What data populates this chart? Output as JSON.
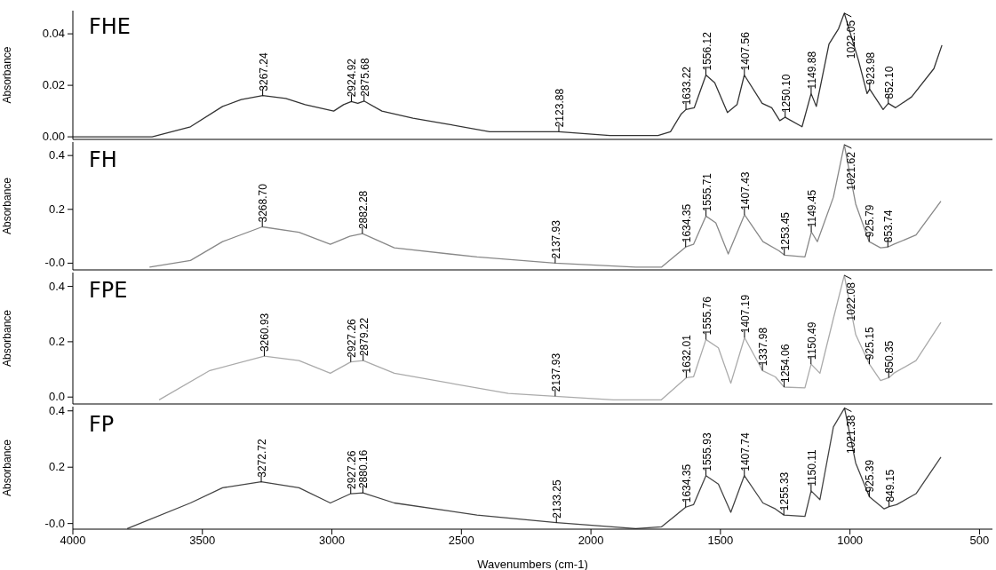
{
  "chart_data": [
    {
      "type": "line",
      "title": "FHE",
      "ylabel": "Absorbance",
      "xlim": [
        4000,
        450
      ],
      "xticks": [
        4000,
        3500,
        3000,
        2500,
        2000,
        1500,
        1000,
        500
      ],
      "ylim": [
        -0.001,
        0.049
      ],
      "yticks": [
        {
          "value": 0,
          "label": "0.00"
        },
        {
          "value": 0.02,
          "label": "0.02"
        },
        {
          "value": 0.04,
          "label": "0.04"
        }
      ],
      "tick_labels": "y",
      "x": [
        4000,
        3694,
        3546,
        3422,
        3350,
        3267,
        3178,
        3103,
        2993,
        2955,
        2925,
        2900,
        2876,
        2807,
        2687,
        2563,
        2391,
        2357,
        2124,
        1927,
        1741,
        1693,
        1652,
        1633,
        1601,
        1556,
        1522,
        1473,
        1436,
        1408,
        1339,
        1302,
        1271,
        1250,
        1185,
        1150,
        1130,
        1081,
        1044,
        1022,
        968,
        934,
        924,
        872,
        852,
        824,
        762,
        676,
        645
      ],
      "series": [
        {
          "color": "#333333",
          "values": [
            0,
            0,
            0.0039,
            0.0118,
            0.0145,
            0.016,
            0.0149,
            0.0125,
            0.01,
            0.0125,
            0.0137,
            0.013,
            0.0139,
            0.01,
            0.0072,
            0.0051,
            0.002,
            0.002,
            0.002,
            0.0005,
            0.0005,
            0.002,
            0.0088,
            0.0106,
            0.0113,
            0.024,
            0.021,
            0.0094,
            0.0125,
            0.024,
            0.013,
            0.0113,
            0.0063,
            0.0076,
            0.0039,
            0.0168,
            0.0118,
            0.036,
            0.042,
            0.048,
            0.03,
            0.0168,
            0.0185,
            0.0106,
            0.013,
            0.0113,
            0.0155,
            0.0265,
            0.0356
          ]
        }
      ],
      "annotations": [
        {
          "text": "3267.24",
          "x": 3267.24,
          "y": 0.016
        },
        {
          "text": "2924.92",
          "x": 2924.92,
          "y": 0.0137
        },
        {
          "text": "2875.68",
          "x": 2875.68,
          "y": 0.0139
        },
        {
          "text": "2123.88",
          "x": 2123.88,
          "y": 0.002
        },
        {
          "text": "1633.22",
          "x": 1633.22,
          "y": 0.0106
        },
        {
          "text": "1556.12",
          "x": 1556.12,
          "y": 0.024
        },
        {
          "text": "1407.56",
          "x": 1407.56,
          "y": 0.024
        },
        {
          "text": "1250.10",
          "x": 1250.1,
          "y": 0.0076
        },
        {
          "text": "1149.88",
          "x": 1149.88,
          "y": 0.0168
        },
        {
          "text": "1022.05",
          "x": 1022.05,
          "y": 0.048
        },
        {
          "text": "923.98",
          "x": 923.98,
          "y": 0.0185
        },
        {
          "text": "852.10",
          "x": 852.1,
          "y": 0.013
        }
      ]
    },
    {
      "type": "line",
      "title": "FH",
      "ylabel": "Absorbance",
      "xlim": [
        4000,
        450
      ],
      "xticks": [
        4000,
        3500,
        3000,
        2500,
        2000,
        1500,
        1000,
        500
      ],
      "ylim": [
        -0.025,
        0.45
      ],
      "yticks": [
        {
          "value": 0,
          "label": "-0.0"
        },
        {
          "value": 0.2,
          "label": "0.2"
        },
        {
          "value": 0.4,
          "label": "0.4"
        }
      ],
      "tick_labels": "y",
      "x": [
        3704,
        3546,
        3422,
        3269,
        3127,
        3006,
        2931,
        2882,
        2759,
        2440,
        2138,
        1827,
        1728,
        1634,
        1604,
        1556,
        1518,
        1470,
        1407,
        1336,
        1274,
        1253,
        1174,
        1149,
        1126,
        1064,
        1022,
        978,
        926,
        882,
        854,
        831,
        745,
        649
      ],
      "series": [
        {
          "color": "#888888",
          "values": [
            -0.015,
            0.01,
            0.08,
            0.135,
            0.115,
            0.07,
            0.1,
            0.11,
            0.057,
            0.023,
            0,
            -0.015,
            -0.015,
            0.06,
            0.07,
            0.175,
            0.15,
            0.034,
            0.18,
            0.08,
            0.046,
            0.03,
            0.023,
            0.116,
            0.08,
            0.245,
            0.44,
            0.22,
            0.08,
            0.057,
            0.06,
            0.07,
            0.105,
            0.23
          ]
        }
      ],
      "annotations": [
        {
          "text": "3268.70",
          "x": 3268.7,
          "y": 0.135
        },
        {
          "text": "2882.28",
          "x": 2882.28,
          "y": 0.11
        },
        {
          "text": "2137.93",
          "x": 2137.93,
          "y": 0
        },
        {
          "text": "1634.35",
          "x": 1634.35,
          "y": 0.06
        },
        {
          "text": "1555.71",
          "x": 1555.71,
          "y": 0.175
        },
        {
          "text": "1407.43",
          "x": 1407.43,
          "y": 0.18
        },
        {
          "text": "1253.45",
          "x": 1253.45,
          "y": 0.03
        },
        {
          "text": "1149.45",
          "x": 1149.45,
          "y": 0.116
        },
        {
          "text": "1021.62",
          "x": 1021.62,
          "y": 0.44
        },
        {
          "text": "925.79",
          "x": 925.79,
          "y": 0.08
        },
        {
          "text": "853.74",
          "x": 853.74,
          "y": 0.06
        }
      ]
    },
    {
      "type": "line",
      "title": "FPE",
      "ylabel": "Absorbance",
      "xlim": [
        4000,
        450
      ],
      "xticks": [
        4000,
        3500,
        3000,
        2500,
        2000,
        1500,
        1000,
        500
      ],
      "ylim": [
        -0.025,
        0.45
      ],
      "yticks": [
        {
          "value": 0,
          "label": "0.0"
        },
        {
          "value": 0.2,
          "label": "0.2"
        },
        {
          "value": 0.4,
          "label": "0.4"
        }
      ],
      "tick_labels": "y",
      "x": [
        3667,
        3471,
        3261,
        3127,
        3006,
        2927,
        2879,
        2759,
        2319,
        2138,
        1913,
        1728,
        1632,
        1604,
        1556,
        1508,
        1460,
        1407,
        1338,
        1288,
        1254,
        1174,
        1150,
        1116,
        1064,
        1022,
        978,
        925,
        882,
        850,
        831,
        745,
        649
      ],
      "series": [
        {
          "color": "#aaaaaa",
          "values": [
            -0.01,
            0.096,
            0.148,
            0.132,
            0.086,
            0.127,
            0.132,
            0.086,
            0.013,
            0.003,
            -0.01,
            -0.01,
            0.07,
            0.073,
            0.208,
            0.178,
            0.05,
            0.215,
            0.096,
            0.073,
            0.036,
            0.033,
            0.119,
            0.086,
            0.284,
            0.44,
            0.226,
            0.119,
            0.06,
            0.07,
            0.086,
            0.132,
            0.27
          ]
        }
      ],
      "annotations": [
        {
          "text": "3260.93",
          "x": 3260.93,
          "y": 0.148
        },
        {
          "text": "2927.26",
          "x": 2927.26,
          "y": 0.127
        },
        {
          "text": "2879.22",
          "x": 2879.22,
          "y": 0.132
        },
        {
          "text": "2137.93",
          "x": 2137.93,
          "y": 0.003
        },
        {
          "text": "1632.01",
          "x": 1632.01,
          "y": 0.07
        },
        {
          "text": "1555.76",
          "x": 1555.76,
          "y": 0.208
        },
        {
          "text": "1407.19",
          "x": 1407.19,
          "y": 0.215
        },
        {
          "text": "1337.98",
          "x": 1337.98,
          "y": 0.096
        },
        {
          "text": "1254.06",
          "x": 1254.06,
          "y": 0.036
        },
        {
          "text": "1150.49",
          "x": 1150.49,
          "y": 0.119
        },
        {
          "text": "1022.08",
          "x": 1022.08,
          "y": 0.44
        },
        {
          "text": "925.15",
          "x": 925.15,
          "y": 0.119
        },
        {
          "text": "850.35",
          "x": 850.35,
          "y": 0.07
        }
      ]
    },
    {
      "type": "line",
      "title": "FP",
      "ylabel": "Absorbance",
      "xlabel": "Wavenumbers (cm-1)",
      "xlim": [
        4000,
        450
      ],
      "xticks": [
        4000,
        3500,
        3000,
        2500,
        2000,
        1500,
        1000,
        500
      ],
      "ylim": [
        -0.02,
        0.415
      ],
      "yticks": [
        {
          "value": 0,
          "label": "-0.0"
        },
        {
          "value": 0.2,
          "label": "0.2"
        },
        {
          "value": 0.4,
          "label": "0.4"
        }
      ],
      "x": [
        3790,
        3546,
        3422,
        3273,
        3127,
        3006,
        2927,
        2880,
        2759,
        2440,
        2133,
        1827,
        1728,
        1634,
        1604,
        1556,
        1508,
        1460,
        1408,
        1336,
        1288,
        1255,
        1174,
        1150,
        1116,
        1064,
        1021,
        978,
        925,
        868,
        849,
        820,
        745,
        649
      ],
      "series": [
        {
          "color": "#444444",
          "values": [
            -0.018,
            0.073,
            0.127,
            0.148,
            0.127,
            0.073,
            0.106,
            0.109,
            0.073,
            0.03,
            0.003,
            -0.018,
            -0.012,
            0.058,
            0.067,
            0.17,
            0.14,
            0.04,
            0.17,
            0.073,
            0.052,
            0.03,
            0.025,
            0.116,
            0.085,
            0.343,
            0.41,
            0.215,
            0.095,
            0.052,
            0.06,
            0.067,
            0.106,
            0.236
          ]
        }
      ],
      "annotations": [
        {
          "text": "3272.72",
          "x": 3272.72,
          "y": 0.148
        },
        {
          "text": "2927.26",
          "x": 2927.26,
          "y": 0.106
        },
        {
          "text": "2880.16",
          "x": 2880.16,
          "y": 0.109
        },
        {
          "text": "2133.25",
          "x": 2133.25,
          "y": 0.003
        },
        {
          "text": "1634.35",
          "x": 1634.35,
          "y": 0.058
        },
        {
          "text": "1555.93",
          "x": 1555.93,
          "y": 0.17
        },
        {
          "text": "1407.74",
          "x": 1407.74,
          "y": 0.17
        },
        {
          "text": "1255.33",
          "x": 1255.33,
          "y": 0.03
        },
        {
          "text": "1150.11",
          "x": 1150.11,
          "y": 0.116
        },
        {
          "text": "1021.38",
          "x": 1021.38,
          "y": 0.41
        },
        {
          "text": "925.39",
          "x": 925.39,
          "y": 0.095
        },
        {
          "text": "849.15",
          "x": 849.15,
          "y": 0.06
        }
      ]
    }
  ]
}
